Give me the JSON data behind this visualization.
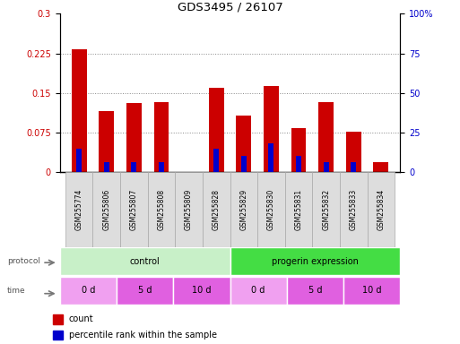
{
  "title": "GDS3495 / 26107",
  "samples": [
    "GSM255774",
    "GSM255806",
    "GSM255807",
    "GSM255808",
    "GSM255809",
    "GSM255828",
    "GSM255829",
    "GSM255830",
    "GSM255831",
    "GSM255832",
    "GSM255833",
    "GSM255834"
  ],
  "red_values": [
    0.232,
    0.115,
    0.13,
    0.133,
    0.0,
    0.16,
    0.107,
    0.163,
    0.083,
    0.133,
    0.077,
    0.018
  ],
  "blue_pct": [
    15,
    6.5,
    6.5,
    6.5,
    0,
    15,
    10,
    18,
    10,
    6.5,
    6.5,
    0
  ],
  "ylim_left": [
    0,
    0.3
  ],
  "ylim_right": [
    0,
    100
  ],
  "yticks_left": [
    0,
    0.075,
    0.15,
    0.225,
    0.3
  ],
  "yticks_right": [
    0,
    25,
    50,
    75,
    100
  ],
  "ytick_labels_left": [
    "0",
    "0.075",
    "0.15",
    "0.225",
    "0.3"
  ],
  "ytick_labels_right": [
    "0",
    "25",
    "50",
    "75",
    "100%"
  ],
  "protocol_groups": [
    {
      "label": "control",
      "start": 0,
      "end": 6,
      "color": "#C8F0C8"
    },
    {
      "label": "progerin expression",
      "start": 6,
      "end": 12,
      "color": "#44DD44"
    }
  ],
  "time_groups": [
    {
      "label": "0 d",
      "start": 0,
      "end": 2,
      "color": "#F0A0F0"
    },
    {
      "label": "5 d",
      "start": 2,
      "end": 4,
      "color": "#E060E0"
    },
    {
      "label": "10 d",
      "start": 4,
      "end": 6,
      "color": "#E060E0"
    },
    {
      "label": "0 d",
      "start": 6,
      "end": 8,
      "color": "#F0A0F0"
    },
    {
      "label": "5 d",
      "start": 8,
      "end": 10,
      "color": "#E060E0"
    },
    {
      "label": "10 d",
      "start": 10,
      "end": 12,
      "color": "#E060E0"
    }
  ],
  "bar_color_red": "#CC0000",
  "bar_color_blue": "#0000CC",
  "bar_width": 0.55,
  "grid_color": "#888888",
  "bg_color": "#FFFFFF",
  "tick_label_color_left": "#CC0000",
  "tick_label_color_right": "#0000CC",
  "legend_items": [
    "count",
    "percentile rank within the sample"
  ],
  "sample_box_color": "#DDDDDD",
  "sample_box_border": "#AAAAAA"
}
